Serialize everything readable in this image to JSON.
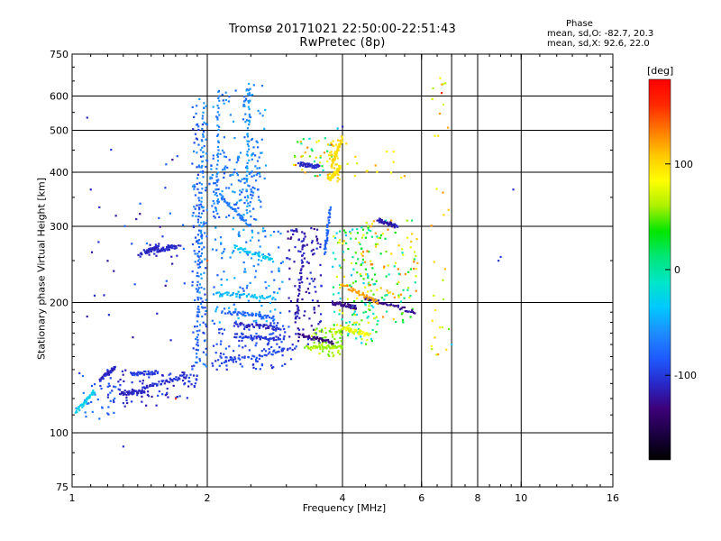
{
  "chart_data": {
    "type": "scatter",
    "title": "Tromsø 20171021 22:50:00-22:51:43",
    "subtitle": "RwPretec (8p)",
    "xlabel": "Frequency [MHz]",
    "ylabel": "Stationary phase Virtual Height [km]",
    "x_scale": "log",
    "y_scale": "log",
    "xlim": [
      1,
      16
    ],
    "ylim": [
      75,
      750
    ],
    "grid": true,
    "x_ticks": [
      1,
      2,
      4,
      6,
      8,
      10,
      16
    ],
    "x_tick_labels": [
      "1",
      "2",
      "4",
      "6",
      "8",
      "10",
      "16"
    ],
    "x_grid": [
      2,
      4,
      6,
      7,
      8,
      10
    ],
    "y_ticks": [
      75,
      100,
      200,
      300,
      400,
      500,
      600,
      750
    ],
    "y_tick_labels": [
      "75",
      "100",
      "200",
      "300",
      "400",
      "500",
      "600",
      "750"
    ],
    "colorbar": {
      "label": "[deg]",
      "range": [
        -180,
        180
      ],
      "ticks": [
        100,
        0,
        -100
      ],
      "tick_labels": [
        "100",
        "0",
        "-100"
      ],
      "colors": [
        "#000000",
        "#1a0040",
        "#3c0078",
        "#2828c8",
        "#1e5aff",
        "#1e8cff",
        "#00c8ff",
        "#00e6c8",
        "#00e678",
        "#00e600",
        "#aaf000",
        "#ffff00",
        "#ffc800",
        "#ff7800",
        "#ff2800",
        "#ff0000"
      ]
    },
    "phase_stats": {
      "title": "Phase",
      "line_o": "mean, sd,O: -82.7, 20.3",
      "line_x": "mean, sd,X:  92.6, 22.0"
    },
    "traces": [
      {
        "x": [
          1.02,
          1.12
        ],
        "y": [
          112,
          125
        ],
        "phase": -30
      },
      {
        "x": [
          1.15,
          1.25
        ],
        "y": [
          132,
          142
        ],
        "phase": -110
      },
      {
        "x": [
          1.28,
          1.45
        ],
        "y": [
          123,
          125
        ],
        "phase": -110
      },
      {
        "x": [
          1.45,
          1.8
        ],
        "y": [
          127,
          136
        ],
        "phase": -105
      },
      {
        "x": [
          1.35,
          1.55
        ],
        "y": [
          137,
          138
        ],
        "phase": -100
      },
      {
        "x": [
          1.45,
          1.55
        ],
        "y": [
          262,
          268
        ],
        "phase": -110
      },
      {
        "x": [
          1.55,
          1.7
        ],
        "y": [
          263,
          270
        ],
        "phase": -110
      },
      {
        "x": [
          1.9,
          1.92
        ],
        "y": [
          145,
          350
        ],
        "phase": -80
      },
      {
        "x": [
          1.93,
          1.96
        ],
        "y": [
          200,
          580
        ],
        "phase": -60
      },
      {
        "x": [
          2.1,
          2.12
        ],
        "y": [
          320,
          620
        ],
        "phase": -65
      },
      {
        "x": [
          2.45,
          2.48
        ],
        "y": [
          320,
          640
        ],
        "phase": -55
      },
      {
        "x": [
          2.15,
          2.5
        ],
        "y": [
          350,
          300
        ],
        "phase": -70
      },
      {
        "x": [
          2.1,
          2.8
        ],
        "y": [
          210,
          205
        ],
        "phase": -40
      },
      {
        "x": [
          2.3,
          2.8
        ],
        "y": [
          270,
          250
        ],
        "phase": -35
      },
      {
        "x": [
          2.2,
          2.8
        ],
        "y": [
          190,
          185
        ],
        "phase": -80
      },
      {
        "x": [
          2.3,
          2.9
        ],
        "y": [
          178,
          175
        ],
        "phase": -110
      },
      {
        "x": [
          2.3,
          2.9
        ],
        "y": [
          168,
          165
        ],
        "phase": -100
      },
      {
        "x": [
          2.15,
          3.15
        ],
        "y": [
          145,
          157
        ],
        "phase": -95
      },
      {
        "x": [
          3.15,
          3.3
        ],
        "y": [
          180,
          290
        ],
        "phase": -115
      },
      {
        "x": [
          3.2,
          3.8
        ],
        "y": [
          168,
          162
        ],
        "phase": -130
      },
      {
        "x": [
          3.3,
          4.0
        ],
        "y": [
          158,
          158
        ],
        "phase": 60
      },
      {
        "x": [
          4.0,
          4.6
        ],
        "y": [
          175,
          168
        ],
        "phase": 80
      },
      {
        "x": [
          3.8,
          4.3
        ],
        "y": [
          200,
          195
        ],
        "phase": -125
      },
      {
        "x": [
          4.5,
          5.8
        ],
        "y": [
          205,
          190
        ],
        "phase": -125
      },
      {
        "x": [
          4.0,
          4.8
        ],
        "y": [
          220,
          200
        ],
        "phase": 120
      },
      {
        "x": [
          4.8,
          5.3
        ],
        "y": [
          310,
          300
        ],
        "phase": -115
      },
      {
        "x": [
          3.8,
          4.0
        ],
        "y": [
          420,
          480
        ],
        "phase": 100
      },
      {
        "x": [
          3.75,
          3.95
        ],
        "y": [
          385,
          410
        ],
        "phase": 95
      },
      {
        "x": [
          3.2,
          3.55
        ],
        "y": [
          418,
          412
        ],
        "phase": -110
      },
      {
        "x": [
          3.65,
          3.75
        ],
        "y": [
          260,
          330
        ],
        "phase": -80
      }
    ],
    "scatter_regions": [
      {
        "x": [
          1.02,
          1.25
        ],
        "y": [
          105,
          140
        ],
        "n": 35,
        "phase": -80,
        "spread": 40
      },
      {
        "x": [
          1.2,
          1.55
        ],
        "y": [
          115,
          140
        ],
        "n": 40,
        "phase": -110,
        "spread": 25
      },
      {
        "x": [
          1.55,
          1.9
        ],
        "y": [
          120,
          140
        ],
        "n": 40,
        "phase": -105,
        "spread": 30
      },
      {
        "x": [
          1.4,
          1.75
        ],
        "y": [
          255,
          275
        ],
        "n": 20,
        "phase": -110,
        "spread": 15
      },
      {
        "x": [
          1.85,
          2.0
        ],
        "y": [
          140,
          600
        ],
        "n": 150,
        "phase": -80,
        "spread": 50
      },
      {
        "x": [
          2.02,
          2.65
        ],
        "y": [
          310,
          450
        ],
        "n": 130,
        "phase": -70,
        "spread": 40
      },
      {
        "x": [
          2.4,
          2.7
        ],
        "y": [
          380,
          640
        ],
        "n": 40,
        "phase": -60,
        "spread": 40
      },
      {
        "x": [
          2.05,
          2.6
        ],
        "y": [
          480,
          620
        ],
        "n": 25,
        "phase": -65,
        "spread": 40
      },
      {
        "x": [
          2.05,
          2.95
        ],
        "y": [
          180,
          300
        ],
        "n": 130,
        "phase": -60,
        "spread": 50
      },
      {
        "x": [
          2.05,
          3.1
        ],
        "y": [
          140,
          180
        ],
        "n": 120,
        "phase": -95,
        "spread": 25
      },
      {
        "x": [
          3.0,
          3.6
        ],
        "y": [
          160,
          300
        ],
        "n": 110,
        "phase": -115,
        "spread": 30
      },
      {
        "x": [
          3.4,
          4.0
        ],
        "y": [
          150,
          175
        ],
        "n": 70,
        "phase": 60,
        "spread": 30
      },
      {
        "x": [
          3.8,
          4.8
        ],
        "y": [
          160,
          300
        ],
        "n": 150,
        "phase": 30,
        "spread": 140
      },
      {
        "x": [
          4.4,
          5.9
        ],
        "y": [
          180,
          310
        ],
        "n": 120,
        "phase": 60,
        "spread": 150
      },
      {
        "x": [
          3.1,
          3.8
        ],
        "y": [
          390,
          480
        ],
        "n": 40,
        "phase": 60,
        "spread": 180
      },
      {
        "x": [
          3.7,
          3.95
        ],
        "y": [
          380,
          480
        ],
        "n": 45,
        "phase": 100,
        "spread": 15
      },
      {
        "x": [
          4.0,
          5.6
        ],
        "y": [
          380,
          480
        ],
        "n": 15,
        "phase": 100,
        "spread": 60
      },
      {
        "x": [
          6.3,
          6.9
        ],
        "y": [
          150,
          650
        ],
        "n": 30,
        "phase": 90,
        "spread": 80
      },
      {
        "x": [
          1.25,
          1.8
        ],
        "y": [
          160,
          460
        ],
        "n": 25,
        "phase": -100,
        "spread": 60
      },
      {
        "x": [
          1.05,
          1.3
        ],
        "y": [
          170,
          550
        ],
        "n": 10,
        "phase": -110,
        "spread": 20
      }
    ],
    "outliers": [
      {
        "x": 1.3,
        "y": 93,
        "phase": -105
      },
      {
        "x": 1.08,
        "y": 535,
        "phase": -110
      },
      {
        "x": 1.7,
        "y": 120,
        "phase": 150
      },
      {
        "x": 9.6,
        "y": 365,
        "phase": -105
      },
      {
        "x": 9.0,
        "y": 255,
        "phase": -100
      },
      {
        "x": 8.9,
        "y": 250,
        "phase": -100
      },
      {
        "x": 7.0,
        "y": 160,
        "phase": -40
      },
      {
        "x": 6.65,
        "y": 610,
        "phase": 160
      },
      {
        "x": 6.7,
        "y": 640,
        "phase": 70
      },
      {
        "x": 6.6,
        "y": 660,
        "phase": 80
      },
      {
        "x": 4.0,
        "y": 510,
        "phase": -110
      },
      {
        "x": 3.9,
        "y": 505,
        "phase": -40
      },
      {
        "x": 2.0,
        "y": 250,
        "phase": 140
      },
      {
        "x": 1.1,
        "y": 365,
        "phase": -110
      }
    ]
  }
}
